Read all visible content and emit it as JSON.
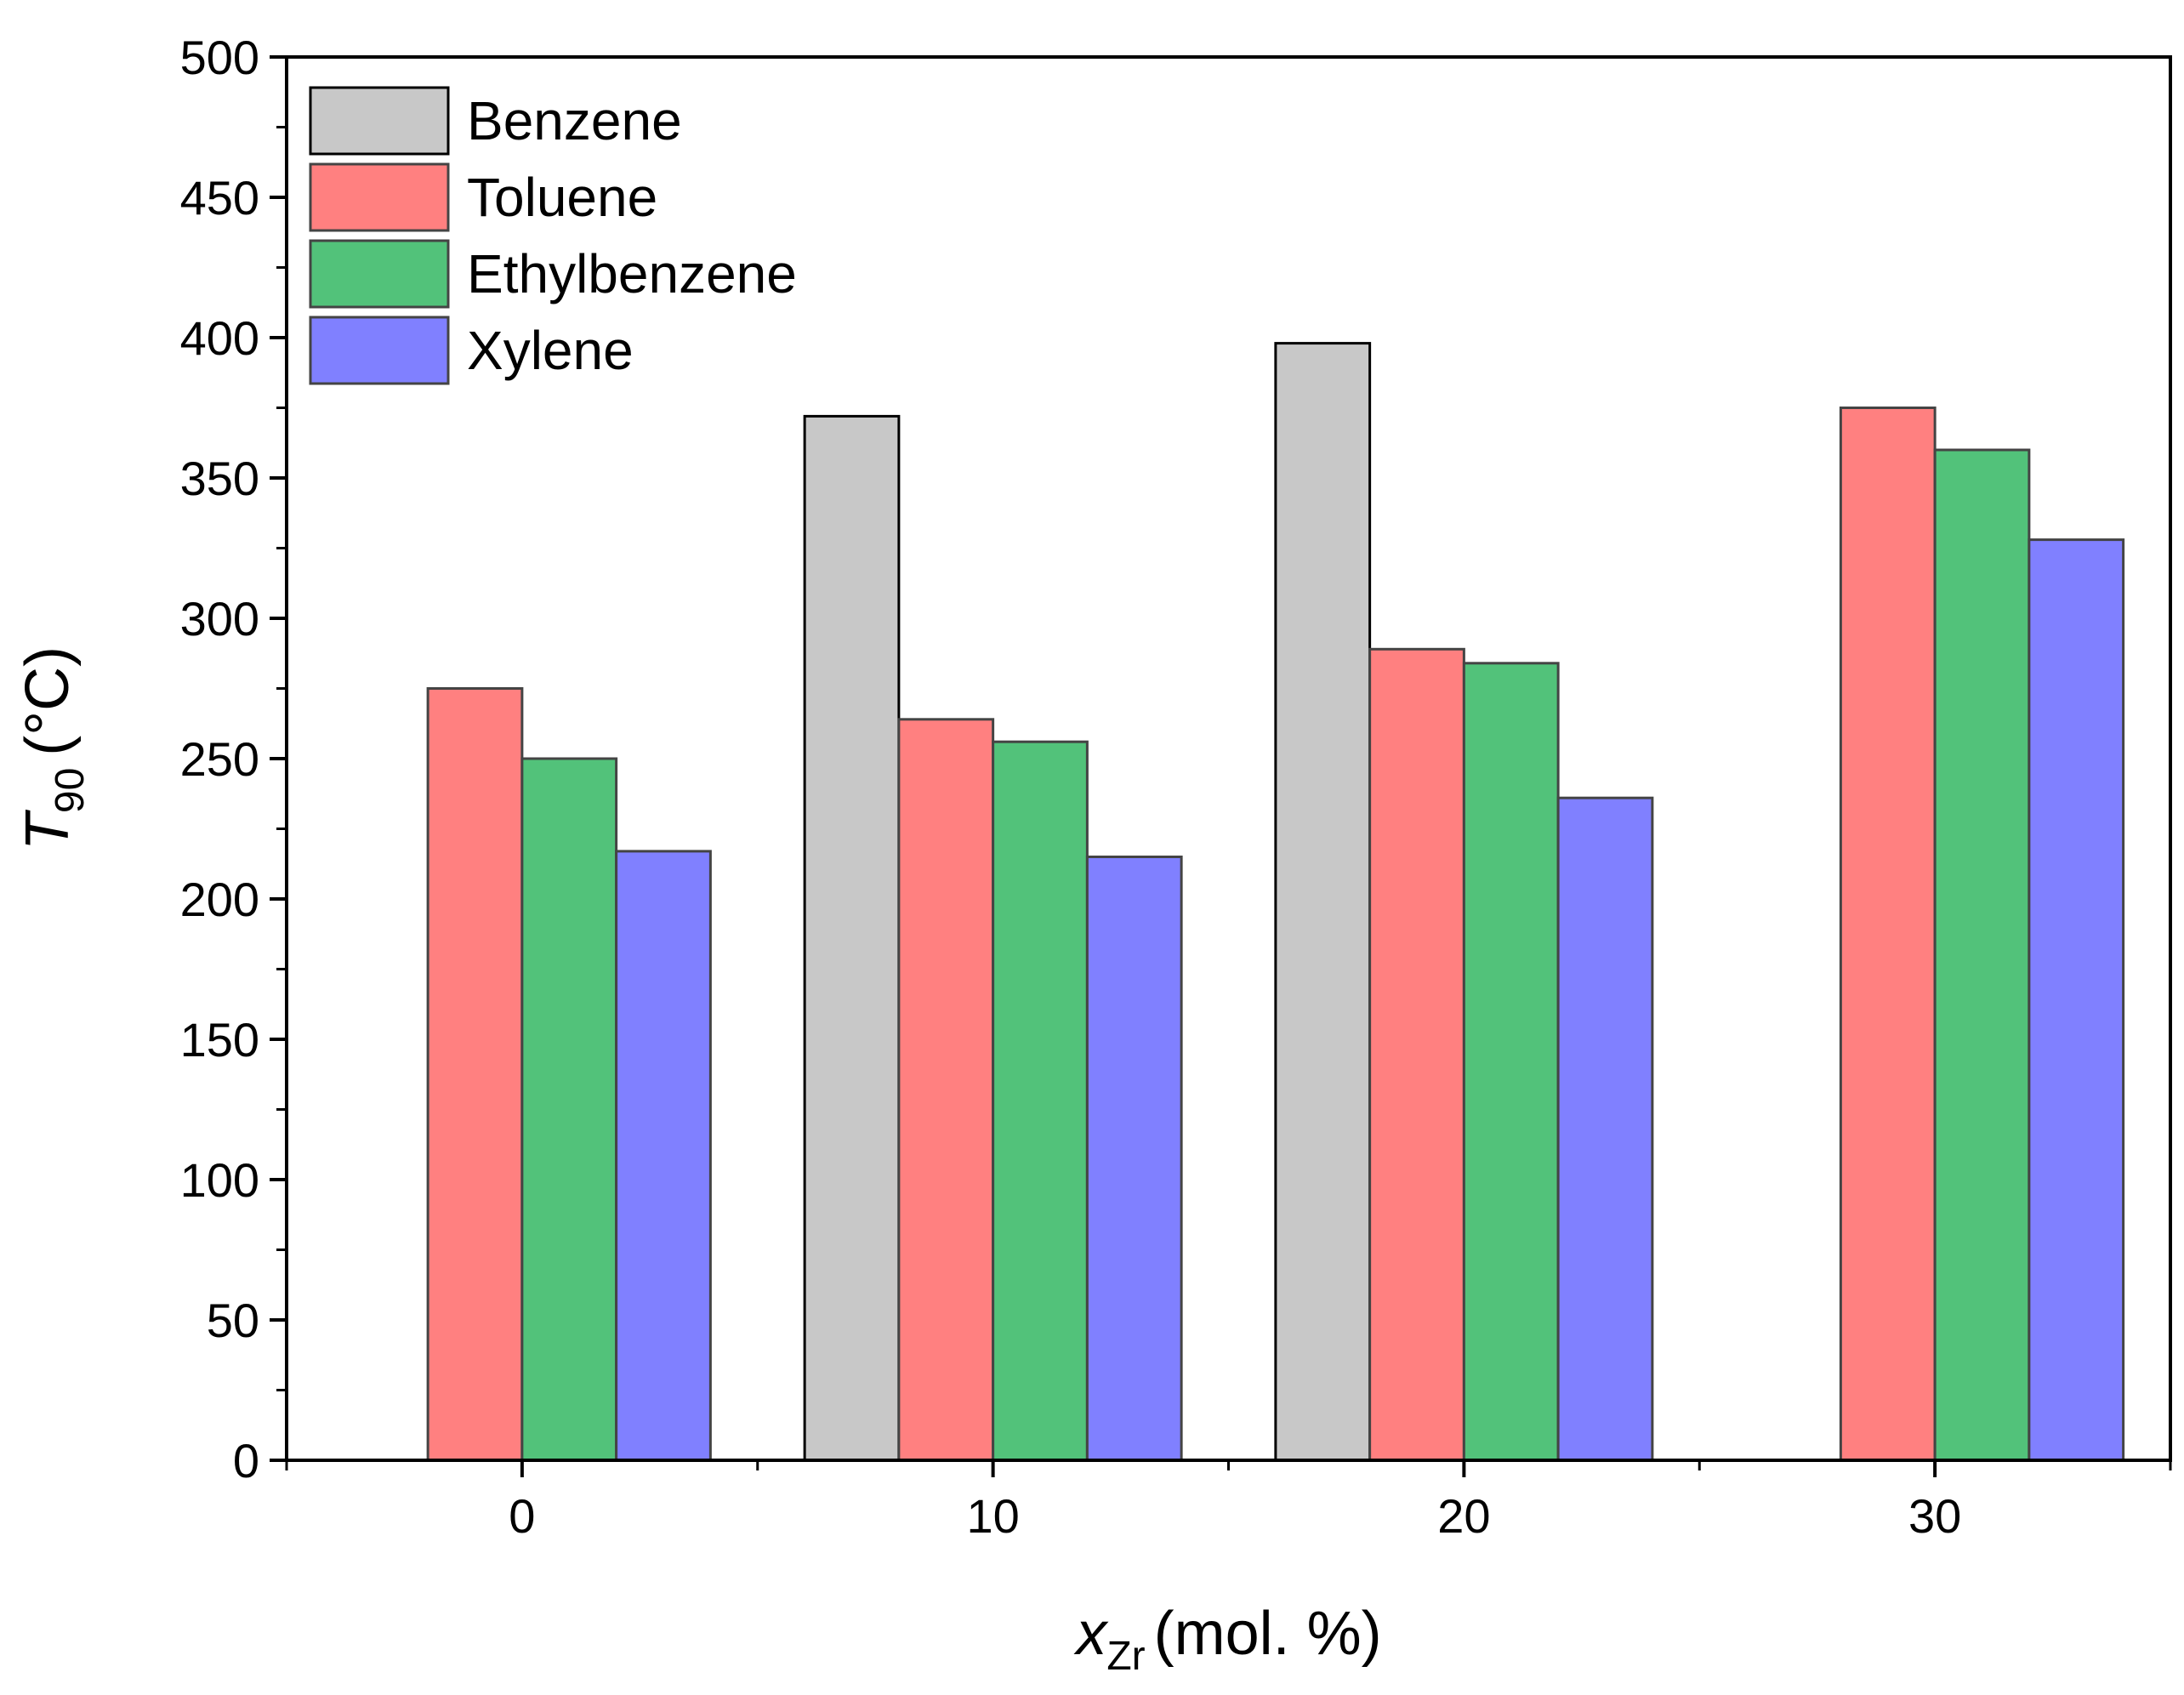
{
  "chart_data": {
    "type": "bar",
    "title": "",
    "xlabel_var": "x",
    "xlabel_sub": "Zr",
    "xlabel_rest": "(mol. %)",
    "ylabel_var": "T",
    "ylabel_sub": "90",
    "ylabel_rest": "(°C)",
    "categories": [
      "0",
      "10",
      "20",
      "30"
    ],
    "x_values": [
      0,
      10,
      20,
      30
    ],
    "xlim": [
      -5,
      35
    ],
    "ylim": [
      0,
      500
    ],
    "y_major_ticks": [
      0,
      50,
      100,
      150,
      200,
      250,
      300,
      350,
      400,
      450,
      500
    ],
    "y_major_tick_labels": [
      "0",
      "50",
      "100",
      "150",
      "200",
      "250",
      "300",
      "350",
      "400",
      "450",
      "500"
    ],
    "y_minor_step": 25,
    "grid": false,
    "legend_position": "top-left",
    "series": [
      {
        "name": "Benzene",
        "color": "#c8c8c8",
        "values": [
          null,
          372,
          398,
          null
        ]
      },
      {
        "name": "Toluene",
        "color": "#ff8080",
        "values": [
          275,
          264,
          289,
          375
        ]
      },
      {
        "name": "Ethylbenzene",
        "color": "#52c27a",
        "values": [
          250,
          256,
          284,
          360
        ]
      },
      {
        "name": "Xylene",
        "color": "#8080ff",
        "values": [
          217,
          215,
          236,
          328
        ]
      }
    ]
  }
}
